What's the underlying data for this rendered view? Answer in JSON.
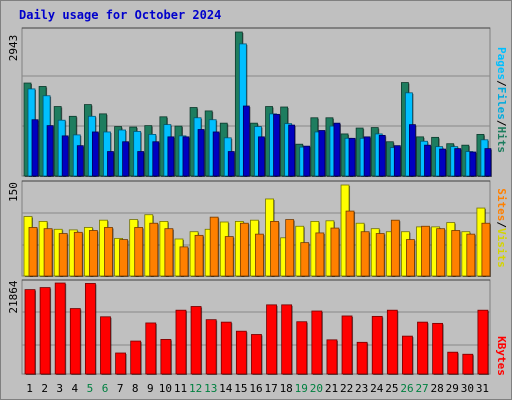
{
  "title": "Daily usage for October 2024",
  "colors": {
    "pages": "#1e7d5f",
    "files": "#00bfff",
    "hits": "#1e7d5f",
    "sites": "#ff8000",
    "visits": "#ffff00",
    "kbytes": "#ff0000",
    "background": "#c0c0c0",
    "weekend_label": "#008040",
    "weekday_label": "#000000"
  },
  "chart_data": [
    {
      "type": "bar",
      "panel": "hits-files-pages",
      "max_label": "2943",
      "ylim": [
        0,
        2943
      ],
      "legend": [
        "Pages",
        "Files",
        "Hits"
      ],
      "series": [
        {
          "name": "Hits",
          "values": [
            1900,
            1830,
            1420,
            1220,
            1460,
            1270,
            1010,
            1000,
            1030,
            1210,
            1020,
            1400,
            1330,
            1080,
            2943,
            1080,
            1420,
            1410,
            650,
            1190,
            1190,
            860,
            980,
            990,
            700,
            1910,
            800,
            790,
            660,
            630,
            850
          ]
        },
        {
          "name": "Files",
          "values": [
            1780,
            1640,
            1140,
            840,
            1220,
            900,
            940,
            910,
            850,
            1050,
            820,
            1190,
            1150,
            780,
            2700,
            1010,
            1270,
            1070,
            590,
            900,
            1020,
            770,
            770,
            860,
            580,
            1700,
            710,
            600,
            600,
            500,
            740
          ]
        },
        {
          "name": "Pages",
          "values": [
            1150,
            1030,
            820,
            620,
            900,
            500,
            700,
            500,
            700,
            800,
            800,
            950,
            900,
            500,
            1430,
            800,
            1260,
            1040,
            610,
            930,
            1080,
            770,
            800,
            830,
            620,
            1050,
            630,
            550,
            560,
            490,
            560
          ]
        }
      ],
      "categories": [
        "1",
        "2",
        "3",
        "4",
        "5",
        "6",
        "7",
        "8",
        "9",
        "10",
        "11",
        "12",
        "13",
        "14",
        "15",
        "16",
        "17",
        "18",
        "19",
        "20",
        "21",
        "22",
        "23",
        "24",
        "25",
        "26",
        "27",
        "28",
        "29",
        "30",
        "31"
      ]
    },
    {
      "type": "bar",
      "panel": "visits-sites",
      "max_label": "150",
      "ylim": [
        0,
        150
      ],
      "legend": [
        "Sites",
        "Visits"
      ],
      "series": [
        {
          "name": "Visits",
          "values": [
            98,
            90,
            77,
            76,
            80,
            92,
            62,
            93,
            101,
            90,
            61,
            73,
            77,
            89,
            90,
            92,
            127,
            63,
            82,
            90,
            91,
            150,
            87,
            78,
            73,
            73,
            81,
            81,
            88,
            73,
            112
          ]
        },
        {
          "name": "Sites",
          "values": [
            80,
            78,
            70,
            72,
            75,
            80,
            60,
            80,
            87,
            78,
            48,
            67,
            97,
            65,
            87,
            69,
            90,
            93,
            55,
            71,
            79,
            107,
            73,
            70,
            92,
            60,
            82,
            78,
            75,
            69,
            87
          ]
        }
      ],
      "categories": [
        "1",
        "2",
        "3",
        "4",
        "5",
        "6",
        "7",
        "8",
        "9",
        "10",
        "11",
        "12",
        "13",
        "14",
        "15",
        "16",
        "17",
        "18",
        "19",
        "20",
        "21",
        "22",
        "23",
        "24",
        "25",
        "26",
        "27",
        "28",
        "29",
        "30",
        "31"
      ]
    },
    {
      "type": "bar",
      "panel": "kbytes",
      "max_label": "21864",
      "ylim": [
        0,
        21864
      ],
      "legend": [
        "KBytes"
      ],
      "series": [
        {
          "name": "KBytes",
          "values": [
            20500,
            21000,
            22100,
            15900,
            22000,
            13900,
            5100,
            8000,
            12400,
            8400,
            15500,
            16400,
            13200,
            12600,
            10400,
            9600,
            16800,
            16800,
            12700,
            15300,
            8300,
            14100,
            7700,
            14000,
            15500,
            9200,
            12600,
            12300,
            5300,
            4800,
            15500
          ]
        }
      ],
      "categories": [
        "1",
        "2",
        "3",
        "4",
        "5",
        "6",
        "7",
        "8",
        "9",
        "10",
        "11",
        "12",
        "13",
        "14",
        "15",
        "16",
        "17",
        "18",
        "19",
        "20",
        "21",
        "22",
        "23",
        "24",
        "25",
        "26",
        "27",
        "28",
        "29",
        "30",
        "31"
      ]
    }
  ],
  "x_axis": {
    "labels": [
      "1",
      "2",
      "3",
      "4",
      "5",
      "6",
      "7",
      "8",
      "9",
      "10",
      "11",
      "12",
      "13",
      "14",
      "15",
      "16",
      "17",
      "18",
      "19",
      "20",
      "21",
      "22",
      "23",
      "24",
      "25",
      "26",
      "27",
      "28",
      "29",
      "30",
      "31"
    ],
    "weekend_days": [
      "5",
      "6",
      "12",
      "13",
      "19",
      "20",
      "26",
      "27"
    ]
  }
}
